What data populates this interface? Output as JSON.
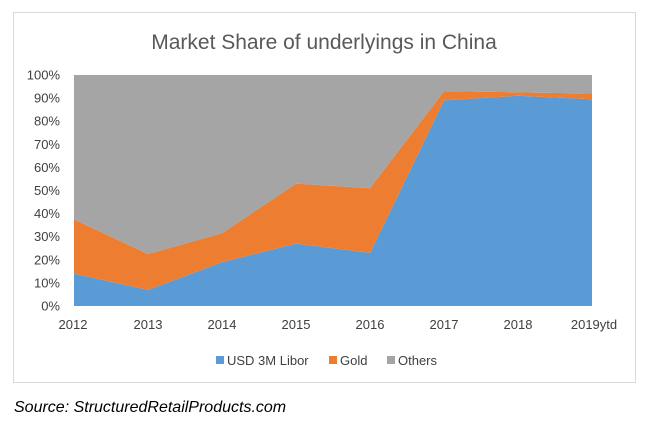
{
  "chart_data": {
    "type": "area",
    "stacked": true,
    "title": "Market Share of underlyings in China",
    "categories": [
      "2012",
      "2013",
      "2014",
      "2015",
      "2016",
      "2017",
      "2018",
      "2019ytd"
    ],
    "y_tick_labels": [
      "0%",
      "10%",
      "20%",
      "30%",
      "40%",
      "50%",
      "60%",
      "70%",
      "80%",
      "90%",
      "100%"
    ],
    "ylim": [
      0,
      100
    ],
    "grid": false,
    "legend_position": "bottom",
    "series": [
      {
        "name": "USD 3M Libor",
        "color": "#5b9bd5",
        "values": [
          14,
          7,
          19,
          27,
          23,
          89,
          91,
          89.5
        ]
      },
      {
        "name": "Gold",
        "color": "#ed7d31",
        "values": [
          23.5,
          15.5,
          12.5,
          26,
          28,
          4,
          1.5,
          2.5
        ]
      },
      {
        "name": "Others",
        "color": "#a5a5a5",
        "values": [
          62.5,
          77.5,
          68.5,
          47,
          49,
          7,
          7.5,
          8
        ]
      }
    ]
  },
  "source_text": "Source: StructuredRetailProducts.com"
}
